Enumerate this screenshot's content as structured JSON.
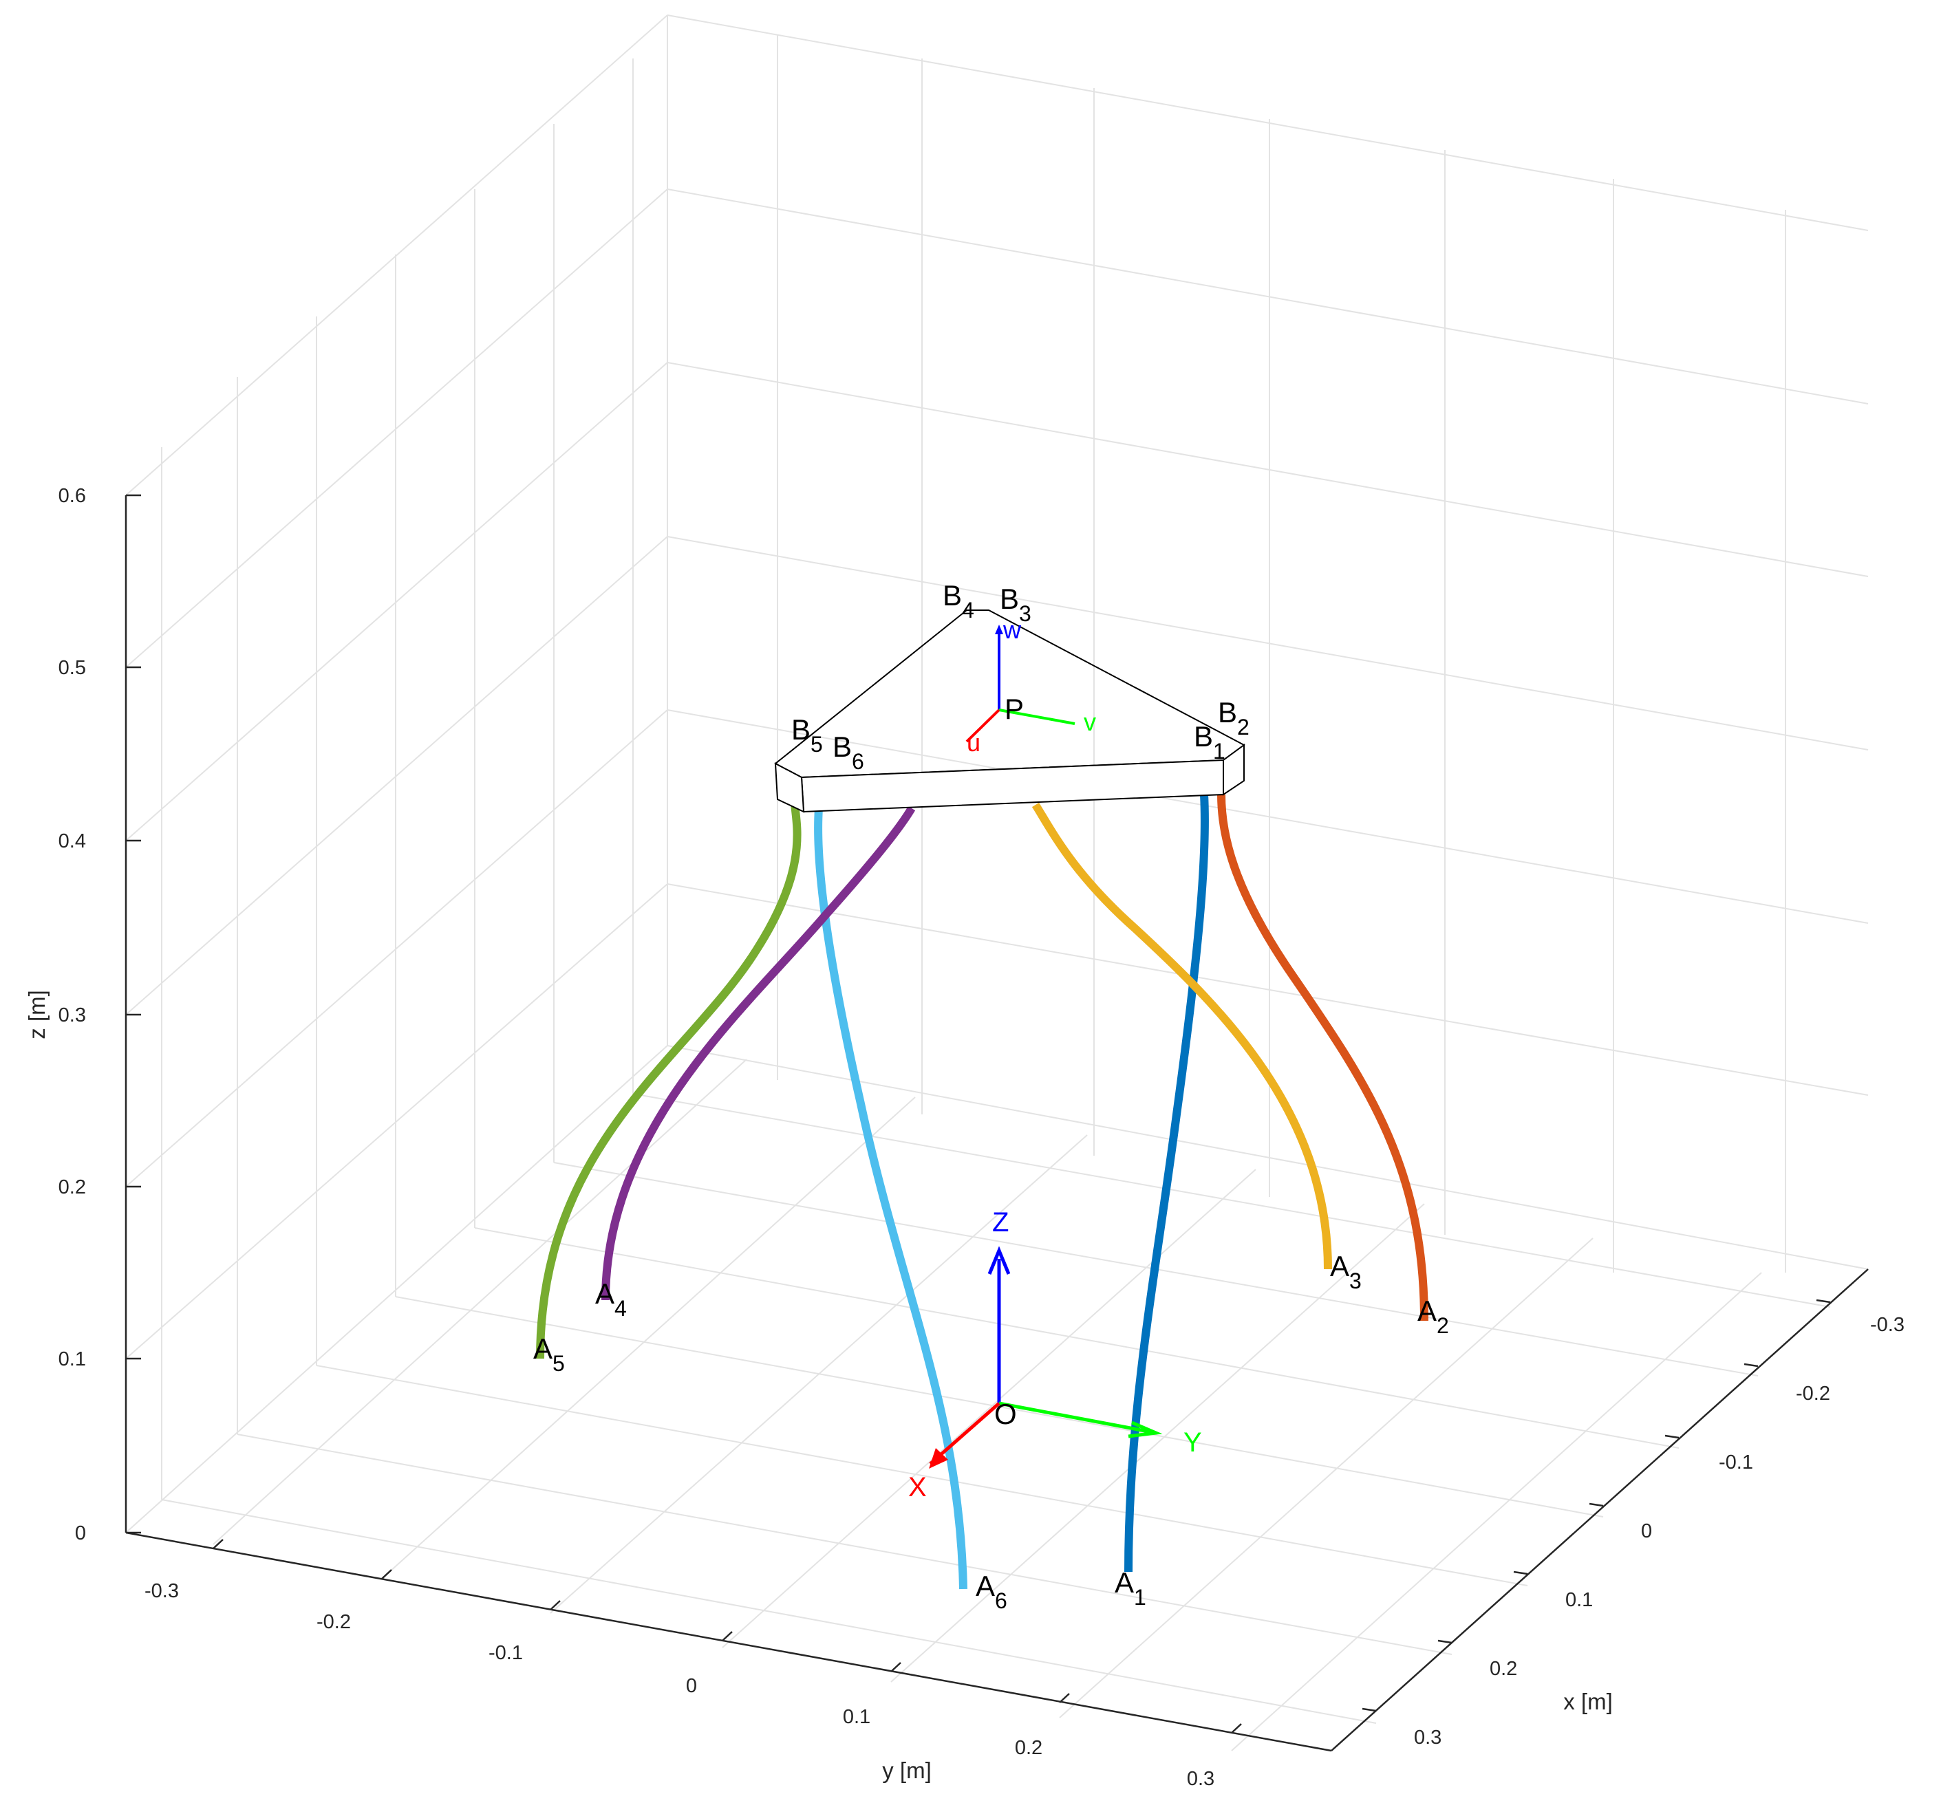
{
  "chart_data": {
    "type": "3d-line",
    "xlabel": "x [m]",
    "ylabel": "y [m]",
    "zlabel": "z [m]",
    "xlim": [
      -0.35,
      0.35
    ],
    "ylim": [
      -0.35,
      0.35
    ],
    "zlim": [
      0,
      0.6
    ],
    "x_ticks": [
      "-0.3",
      "-0.2",
      "-0.1",
      "0",
      "0.1",
      "0.2",
      "0.3"
    ],
    "y_ticks": [
      "-0.3",
      "-0.2",
      "-0.1",
      "0",
      "0.1",
      "0.2",
      "0.3"
    ],
    "z_ticks": [
      "0",
      "0.1",
      "0.2",
      "0.3",
      "0.4",
      "0.5",
      "0.6"
    ],
    "grid": true,
    "series": [
      {
        "name": "A1",
        "color": "#0072BD",
        "base": [
          0.25,
          0.07,
          0.0
        ],
        "top": [
          0.06,
          0.13,
          0.42
        ]
      },
      {
        "name": "A2",
        "color": "#D95319",
        "base": [
          -0.07,
          0.26,
          0.0
        ],
        "top": [
          0.06,
          0.13,
          0.42
        ]
      },
      {
        "name": "A3",
        "color": "#EDB120",
        "base": [
          -0.18,
          0.19,
          0.0
        ],
        "top": [
          -0.02,
          0.03,
          0.42
        ]
      },
      {
        "name": "A4",
        "color": "#7E2F8E",
        "base": [
          -0.18,
          -0.19,
          0.0
        ],
        "top": [
          -0.05,
          -0.03,
          0.42
        ]
      },
      {
        "name": "A5",
        "color": "#77AC30",
        "base": [
          -0.07,
          -0.26,
          0.0
        ],
        "top": [
          -0.12,
          -0.07,
          0.42
        ]
      },
      {
        "name": "A6",
        "color": "#4DBEEE",
        "base": [
          0.25,
          -0.07,
          0.0
        ],
        "top": [
          -0.12,
          -0.05,
          0.42
        ]
      }
    ],
    "platform_labels": [
      {
        "main": "B",
        "sub": "1"
      },
      {
        "main": "B",
        "sub": "2"
      },
      {
        "main": "B",
        "sub": "3"
      },
      {
        "main": "B",
        "sub": "4"
      },
      {
        "main": "B",
        "sub": "5"
      },
      {
        "main": "B",
        "sub": "6"
      }
    ],
    "base_frame": {
      "origin": "O",
      "x": "X",
      "y": "Y",
      "z": "Z"
    },
    "platform_frame": {
      "origin": "P",
      "u": "u",
      "v": "v",
      "w": "w"
    },
    "colors": {
      "x_axis": "#FF0000",
      "y_axis": "#00FF00",
      "z_axis": "#0000FF",
      "grid": "#E6E6E6",
      "axis_line": "#262626"
    }
  }
}
